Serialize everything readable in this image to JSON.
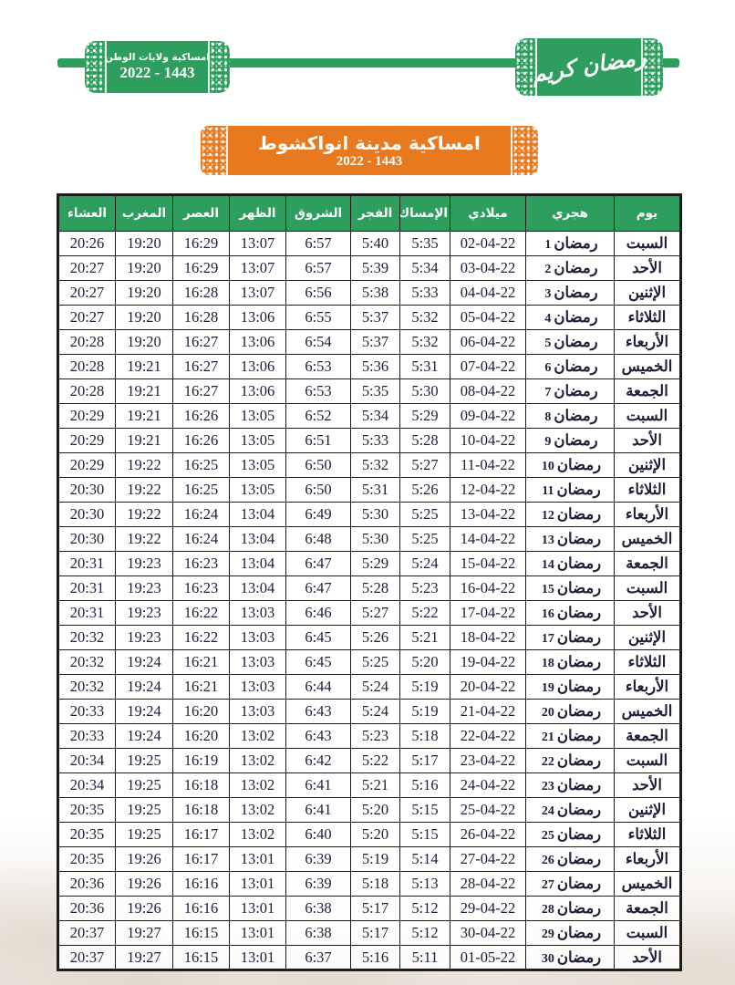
{
  "banner": {
    "left_badge": {
      "title": "امساكية ولايات الوطن",
      "years": "2022 - 1443"
    },
    "right_badge": {
      "calligraphy": "رمضان كريم"
    }
  },
  "title_box": {
    "title": "امساكية مدينة انواكشوط",
    "years": "2022 - 1443"
  },
  "table": {
    "column_order": [
      "day",
      "hijri",
      "miladi",
      "imsak",
      "fajr",
      "shuruq",
      "dhuhr",
      "asr",
      "maghrib",
      "isha"
    ],
    "headers": {
      "day": "يوم",
      "hijri": "هجري",
      "miladi": "ميلادي",
      "imsak": "الإمساك",
      "fajr": "الفجر",
      "shuruq": "الشروق",
      "dhuhr": "الظهر",
      "asr": "العصر",
      "maghrib": "المغرب",
      "isha": "العشاء"
    },
    "hijri_month": "رمضان",
    "rows": [
      {
        "day": "السبت",
        "hijri_day": 1,
        "miladi": "02-04-22",
        "imsak": "5:35",
        "fajr": "5:40",
        "shuruq": "6:57",
        "dhuhr": "13:07",
        "asr": "16:29",
        "maghrib": "19:20",
        "isha": "20:26"
      },
      {
        "day": "الأحد",
        "hijri_day": 2,
        "miladi": "03-04-22",
        "imsak": "5:34",
        "fajr": "5:39",
        "shuruq": "6:57",
        "dhuhr": "13:07",
        "asr": "16:29",
        "maghrib": "19:20",
        "isha": "20:27"
      },
      {
        "day": "الإثنين",
        "hijri_day": 3,
        "miladi": "04-04-22",
        "imsak": "5:33",
        "fajr": "5:38",
        "shuruq": "6:56",
        "dhuhr": "13:07",
        "asr": "16:28",
        "maghrib": "19:20",
        "isha": "20:27"
      },
      {
        "day": "الثلاثاء",
        "hijri_day": 4,
        "miladi": "05-04-22",
        "imsak": "5:32",
        "fajr": "5:37",
        "shuruq": "6:55",
        "dhuhr": "13:06",
        "asr": "16:28",
        "maghrib": "19:20",
        "isha": "20:27"
      },
      {
        "day": "الأربعاء",
        "hijri_day": 5,
        "miladi": "06-04-22",
        "imsak": "5:32",
        "fajr": "5:37",
        "shuruq": "6:54",
        "dhuhr": "13:06",
        "asr": "16:27",
        "maghrib": "19:20",
        "isha": "20:28"
      },
      {
        "day": "الخميس",
        "hijri_day": 6,
        "miladi": "07-04-22",
        "imsak": "5:31",
        "fajr": "5:36",
        "shuruq": "6:53",
        "dhuhr": "13:06",
        "asr": "16:27",
        "maghrib": "19:21",
        "isha": "20:28"
      },
      {
        "day": "الجمعة",
        "hijri_day": 7,
        "miladi": "08-04-22",
        "imsak": "5:30",
        "fajr": "5:35",
        "shuruq": "6:53",
        "dhuhr": "13:06",
        "asr": "16:27",
        "maghrib": "19:21",
        "isha": "20:28"
      },
      {
        "day": "السبت",
        "hijri_day": 8,
        "miladi": "09-04-22",
        "imsak": "5:29",
        "fajr": "5:34",
        "shuruq": "6:52",
        "dhuhr": "13:05",
        "asr": "16:26",
        "maghrib": "19:21",
        "isha": "20:29"
      },
      {
        "day": "الأحد",
        "hijri_day": 9,
        "miladi": "10-04-22",
        "imsak": "5:28",
        "fajr": "5:33",
        "shuruq": "6:51",
        "dhuhr": "13:05",
        "asr": "16:26",
        "maghrib": "19:21",
        "isha": "20:29"
      },
      {
        "day": "الإثنين",
        "hijri_day": 10,
        "miladi": "11-04-22",
        "imsak": "5:27",
        "fajr": "5:32",
        "shuruq": "6:50",
        "dhuhr": "13:05",
        "asr": "16:25",
        "maghrib": "19:22",
        "isha": "20:29"
      },
      {
        "day": "الثلاثاء",
        "hijri_day": 11,
        "miladi": "12-04-22",
        "imsak": "5:26",
        "fajr": "5:31",
        "shuruq": "6:50",
        "dhuhr": "13:05",
        "asr": "16:25",
        "maghrib": "19:22",
        "isha": "20:30"
      },
      {
        "day": "الأربعاء",
        "hijri_day": 12,
        "miladi": "13-04-22",
        "imsak": "5:25",
        "fajr": "5:30",
        "shuruq": "6:49",
        "dhuhr": "13:04",
        "asr": "16:24",
        "maghrib": "19:22",
        "isha": "20:30"
      },
      {
        "day": "الخميس",
        "hijri_day": 13,
        "miladi": "14-04-22",
        "imsak": "5:25",
        "fajr": "5:30",
        "shuruq": "6:48",
        "dhuhr": "13:04",
        "asr": "16:24",
        "maghrib": "19:22",
        "isha": "20:30"
      },
      {
        "day": "الجمعة",
        "hijri_day": 14,
        "miladi": "15-04-22",
        "imsak": "5:24",
        "fajr": "5:29",
        "shuruq": "6:47",
        "dhuhr": "13:04",
        "asr": "16:23",
        "maghrib": "19:23",
        "isha": "20:31"
      },
      {
        "day": "السبت",
        "hijri_day": 15,
        "miladi": "16-04-22",
        "imsak": "5:23",
        "fajr": "5:28",
        "shuruq": "6:47",
        "dhuhr": "13:04",
        "asr": "16:23",
        "maghrib": "19:23",
        "isha": "20:31"
      },
      {
        "day": "الأحد",
        "hijri_day": 16,
        "miladi": "17-04-22",
        "imsak": "5:22",
        "fajr": "5:27",
        "shuruq": "6:46",
        "dhuhr": "13:03",
        "asr": "16:22",
        "maghrib": "19:23",
        "isha": "20:31"
      },
      {
        "day": "الإثنين",
        "hijri_day": 17,
        "miladi": "18-04-22",
        "imsak": "5:21",
        "fajr": "5:26",
        "shuruq": "6:45",
        "dhuhr": "13:03",
        "asr": "16:22",
        "maghrib": "19:23",
        "isha": "20:32"
      },
      {
        "day": "الثلاثاء",
        "hijri_day": 18,
        "miladi": "19-04-22",
        "imsak": "5:20",
        "fajr": "5:25",
        "shuruq": "6:45",
        "dhuhr": "13:03",
        "asr": "16:21",
        "maghrib": "19:24",
        "isha": "20:32"
      },
      {
        "day": "الأربعاء",
        "hijri_day": 19,
        "miladi": "20-04-22",
        "imsak": "5:19",
        "fajr": "5:24",
        "shuruq": "6:44",
        "dhuhr": "13:03",
        "asr": "16:21",
        "maghrib": "19:24",
        "isha": "20:32"
      },
      {
        "day": "الخميس",
        "hijri_day": 20,
        "miladi": "21-04-22",
        "imsak": "5:19",
        "fajr": "5:24",
        "shuruq": "6:43",
        "dhuhr": "13:03",
        "asr": "16:20",
        "maghrib": "19:24",
        "isha": "20:33"
      },
      {
        "day": "الجمعة",
        "hijri_day": 21,
        "miladi": "22-04-22",
        "imsak": "5:18",
        "fajr": "5:23",
        "shuruq": "6:43",
        "dhuhr": "13:02",
        "asr": "16:20",
        "maghrib": "19:24",
        "isha": "20:33"
      },
      {
        "day": "السبت",
        "hijri_day": 22,
        "miladi": "23-04-22",
        "imsak": "5:17",
        "fajr": "5:22",
        "shuruq": "6:42",
        "dhuhr": "13:02",
        "asr": "16:19",
        "maghrib": "19:25",
        "isha": "20:34"
      },
      {
        "day": "الأحد",
        "hijri_day": 23,
        "miladi": "24-04-22",
        "imsak": "5:16",
        "fajr": "5:21",
        "shuruq": "6:41",
        "dhuhr": "13:02",
        "asr": "16:18",
        "maghrib": "19:25",
        "isha": "20:34"
      },
      {
        "day": "الإثنين",
        "hijri_day": 24,
        "miladi": "25-04-22",
        "imsak": "5:15",
        "fajr": "5:20",
        "shuruq": "6:41",
        "dhuhr": "13:02",
        "asr": "16:18",
        "maghrib": "19:25",
        "isha": "20:35"
      },
      {
        "day": "الثلاثاء",
        "hijri_day": 25,
        "miladi": "26-04-22",
        "imsak": "5:15",
        "fajr": "5:20",
        "shuruq": "6:40",
        "dhuhr": "13:02",
        "asr": "16:17",
        "maghrib": "19:25",
        "isha": "20:35"
      },
      {
        "day": "الأربعاء",
        "hijri_day": 26,
        "miladi": "27-04-22",
        "imsak": "5:14",
        "fajr": "5:19",
        "shuruq": "6:39",
        "dhuhr": "13:01",
        "asr": "16:17",
        "maghrib": "19:26",
        "isha": "20:35"
      },
      {
        "day": "الخميس",
        "hijri_day": 27,
        "miladi": "28-04-22",
        "imsak": "5:13",
        "fajr": "5:18",
        "shuruq": "6:39",
        "dhuhr": "13:01",
        "asr": "16:16",
        "maghrib": "19:26",
        "isha": "20:36"
      },
      {
        "day": "الجمعة",
        "hijri_day": 28,
        "miladi": "29-04-22",
        "imsak": "5:12",
        "fajr": "5:17",
        "shuruq": "6:38",
        "dhuhr": "13:01",
        "asr": "16:16",
        "maghrib": "19:26",
        "isha": "20:36"
      },
      {
        "day": "السبت",
        "hijri_day": 29,
        "miladi": "30-04-22",
        "imsak": "5:12",
        "fajr": "5:17",
        "shuruq": "6:38",
        "dhuhr": "13:01",
        "asr": "16:15",
        "maghrib": "19:27",
        "isha": "20:37"
      },
      {
        "day": "الأحد",
        "hijri_day": 30,
        "miladi": "01-05-22",
        "imsak": "5:11",
        "fajr": "5:16",
        "shuruq": "6:37",
        "dhuhr": "13:01",
        "asr": "16:15",
        "maghrib": "19:27",
        "isha": "20:37"
      }
    ]
  },
  "colors": {
    "green": "#2e9e5f",
    "orange": "#e8791f",
    "cream": "#f6f3df",
    "mint": "#ebf6ec",
    "hijri_text": "#39399b",
    "miladi_text": "#4c7c44",
    "time_text": "#20203a"
  }
}
